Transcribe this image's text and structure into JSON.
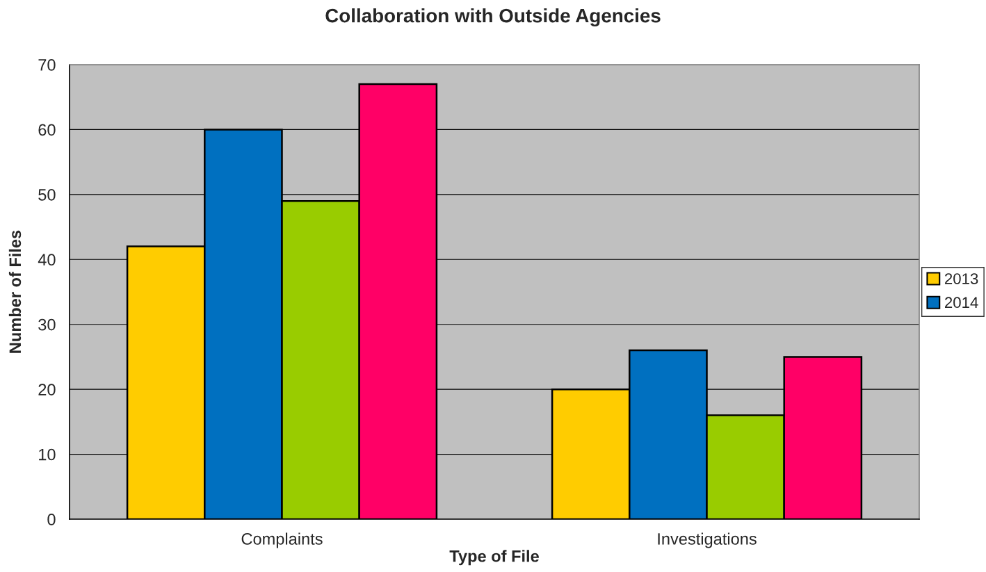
{
  "chart_data": {
    "type": "bar",
    "title": "Collaboration with Outside Agencies",
    "xlabel": "Type of File",
    "ylabel": "Number of Files",
    "categories": [
      "Complaints",
      "Investigations"
    ],
    "series": [
      {
        "name": "2013",
        "color": "#ffcc00",
        "values": [
          42,
          20
        ]
      },
      {
        "name": "2014",
        "color": "#0070c0",
        "values": [
          60,
          26
        ]
      },
      {
        "color": "#99cc00",
        "values": [
          49,
          16
        ]
      },
      {
        "color": "#ff0066",
        "values": [
          67,
          25
        ]
      }
    ],
    "ylim": [
      0,
      70
    ],
    "yticks": [
      0,
      10,
      20,
      30,
      40,
      50,
      60,
      70
    ],
    "grid": "y",
    "legend": "right"
  }
}
